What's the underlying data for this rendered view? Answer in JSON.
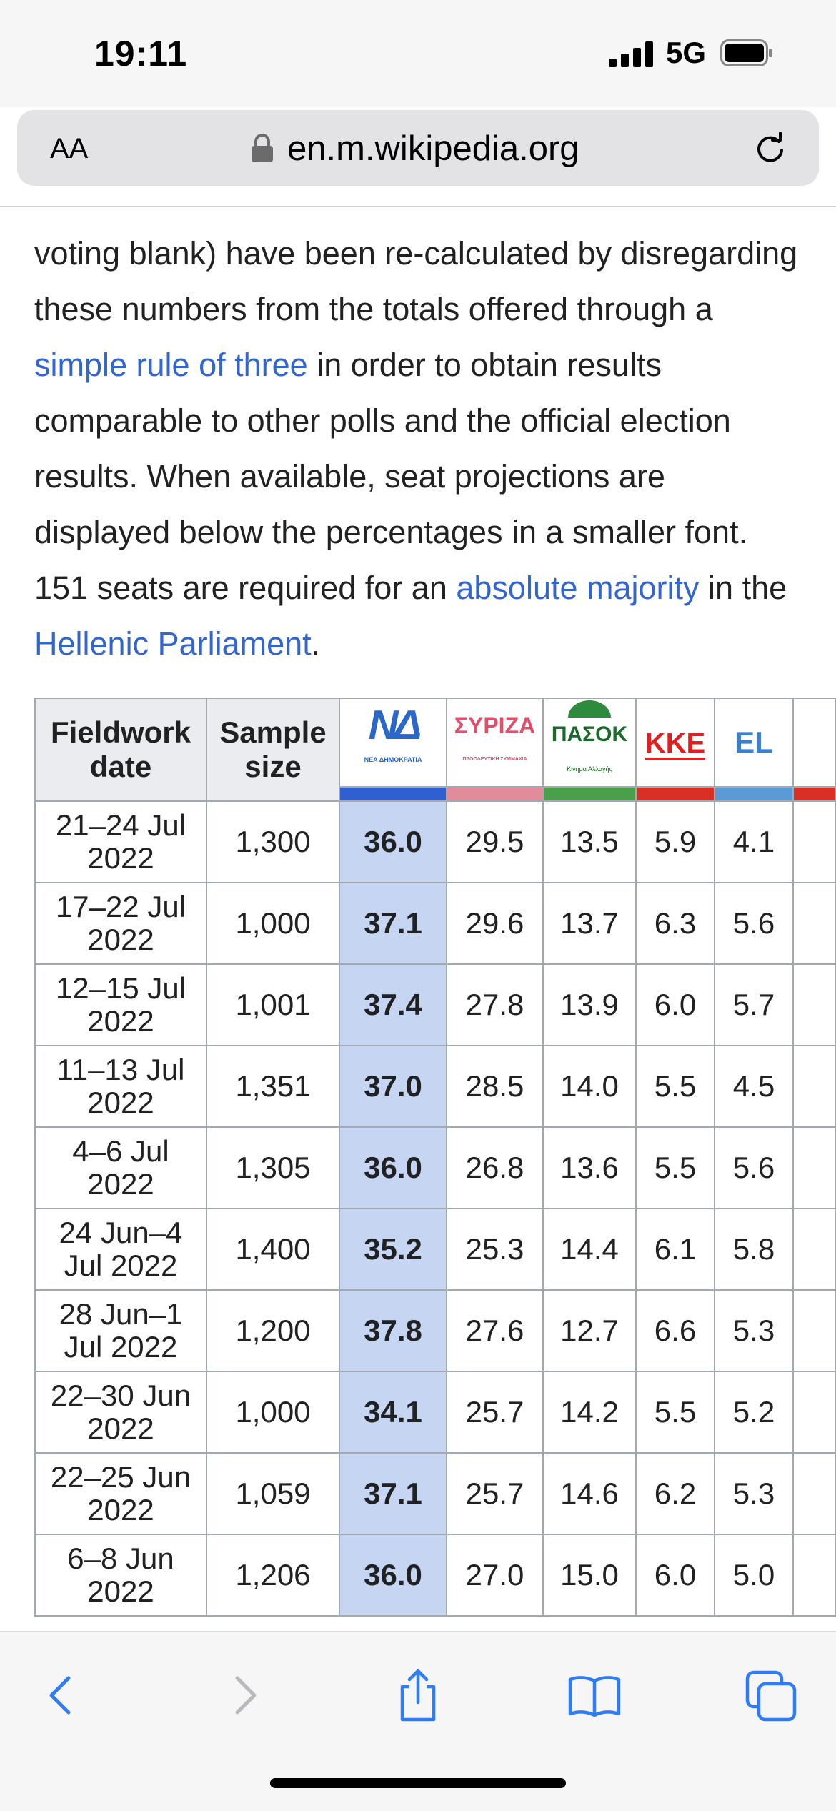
{
  "status_bar": {
    "time": "19:11",
    "network": "5G"
  },
  "url_bar": {
    "text_size_label": "AA",
    "domain": "en.m.wikipedia.org"
  },
  "article": {
    "p1": "voting blank) have been re-calculated by disregarding these numbers from the totals offered through a ",
    "link1": "simple rule of three",
    "p2": " in order to obtain results comparable to other polls and the official election results. When available, seat projections are displayed below the percentages in a smaller font. 151 seats are required for an ",
    "link2": "absolute majority",
    "p3": " in the ",
    "link3": "Hellenic Parliament",
    "p4": "."
  },
  "table": {
    "headers": {
      "date": "Fieldwork date",
      "sample": "Sample size"
    },
    "parties": [
      {
        "logo_text": "ΝΔ",
        "sub": "ΝΕΑ ΔΗΜΟΚΡΑΤΙΑ",
        "color": "#2f5fd0"
      },
      {
        "logo_text": "ΣΥΡΙΖΑ",
        "sub": "ΠΡΟΟΔΕΥΤΙΚΗ ΣΥΜΜΑΧΙΑ",
        "color": "#e28b9b"
      },
      {
        "logo_text": "ΠΑΣΟΚ",
        "sub": "Κίνημα Αλλαγής",
        "color": "#4aa04a"
      },
      {
        "logo_text": "ΚΚΕ",
        "color": "#d93025"
      },
      {
        "logo_text": "EL",
        "color": "#5b9bd5"
      }
    ],
    "rows": [
      {
        "date": "21–24 Jul 2022",
        "sample": "1,300",
        "nd": "36.0",
        "syriza": "29.5",
        "pasok": "13.5",
        "kke": "5.9",
        "el": "4.1"
      },
      {
        "date": "17–22 Jul 2022",
        "sample": "1,000",
        "nd": "37.1",
        "syriza": "29.6",
        "pasok": "13.7",
        "kke": "6.3",
        "el": "5.6"
      },
      {
        "date": "12–15 Jul 2022",
        "sample": "1,001",
        "nd": "37.4",
        "syriza": "27.8",
        "pasok": "13.9",
        "kke": "6.0",
        "el": "5.7"
      },
      {
        "date": "11–13 Jul 2022",
        "sample": "1,351",
        "nd": "37.0",
        "syriza": "28.5",
        "pasok": "14.0",
        "kke": "5.5",
        "el": "4.5"
      },
      {
        "date": "4–6 Jul 2022",
        "sample": "1,305",
        "nd": "36.0",
        "syriza": "26.8",
        "pasok": "13.6",
        "kke": "5.5",
        "el": "5.6"
      },
      {
        "date": "24 Jun–4 Jul 2022",
        "sample": "1,400",
        "nd": "35.2",
        "syriza": "25.3",
        "pasok": "14.4",
        "kke": "6.1",
        "el": "5.8"
      },
      {
        "date": "28 Jun–1 Jul 2022",
        "sample": "1,200",
        "nd": "37.8",
        "syriza": "27.6",
        "pasok": "12.7",
        "kke": "6.6",
        "el": "5.3"
      },
      {
        "date": "22–30 Jun 2022",
        "sample": "1,000",
        "nd": "34.1",
        "syriza": "25.7",
        "pasok": "14.2",
        "kke": "5.5",
        "el": "5.2"
      },
      {
        "date": "22–25 Jun 2022",
        "sample": "1,059",
        "nd": "37.1",
        "syriza": "25.7",
        "pasok": "14.6",
        "kke": "6.2",
        "el": "5.3"
      },
      {
        "date": "6–8 Jun 2022",
        "sample": "1,206",
        "nd": "36.0",
        "syriza": "27.0",
        "pasok": "15.0",
        "kke": "6.0",
        "el": "5.0"
      }
    ]
  },
  "toolbar": {
    "icons": [
      "back-icon",
      "forward-icon",
      "share-icon",
      "bookmarks-icon",
      "tabs-icon"
    ]
  },
  "colors": {
    "link": "#3366cc",
    "highlight": "#c6d6f2",
    "header_bg": "#eaecf0"
  }
}
